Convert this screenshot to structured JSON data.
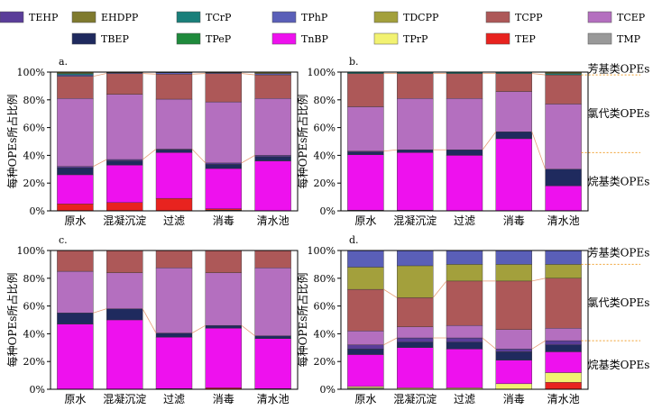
{
  "chart_data": {
    "type": "stacked-bar",
    "legend": [
      {
        "name": "EHDPP",
        "color": "#7f7a2e"
      },
      {
        "name": "TCrP",
        "color": "#1a7f7a"
      },
      {
        "name": "TPhP",
        "color": "#5a5fb8"
      },
      {
        "name": "TDCPP",
        "color": "#a3a03c"
      },
      {
        "name": "TCPP",
        "color": "#ad5858"
      },
      {
        "name": "TCEP",
        "color": "#b46fbf"
      },
      {
        "name": "TEHP",
        "color": "#5a3d99"
      },
      {
        "name": "TBEP",
        "color": "#1f2a5e"
      },
      {
        "name": "TPeP",
        "color": "#1f8a3c"
      },
      {
        "name": "TnBP",
        "color": "#ee11ee"
      },
      {
        "name": "TPrP",
        "color": "#f2f271"
      },
      {
        "name": "TEP",
        "color": "#e8231f"
      },
      {
        "name": "TMP",
        "color": "#999999"
      }
    ],
    "stack_order": [
      "TMP",
      "TEP",
      "TPrP",
      "TnBP",
      "TPeP",
      "TBEP",
      "TEHP",
      "TCEP",
      "TCPP",
      "TDCPP",
      "TPhP",
      "TCrP",
      "EHDPP"
    ],
    "categories": [
      "原水",
      "混凝沉淀",
      "过滤",
      "消毒",
      "清水池"
    ],
    "ylabel": "每种OPEs所占比例",
    "yticks": [
      "0%",
      "20%",
      "40%",
      "60%",
      "80%",
      "100%"
    ],
    "ylim": [
      0,
      100
    ],
    "group_labels": [
      "芳基类OPEs",
      "氯代类OPEs",
      "烷基类OPEs"
    ],
    "panels": [
      {
        "letter": "a.",
        "show_group_labels": false,
        "bars": [
          {
            "TEP": 5,
            "TnBP": 21,
            "TBEP": 5,
            "TEHP": 1,
            "TCEP": 49,
            "TCPP": 16,
            "TPhP": 1,
            "TCrP": 1,
            "EHDPP": 1
          },
          {
            "TEP": 6,
            "TnBP": 27,
            "TBEP": 3,
            "TEHP": 1,
            "TCEP": 47,
            "TCPP": 15,
            "TPhP": 0.5,
            "EHDPP": 0.5
          },
          {
            "TEP": 9,
            "TnBP": 33,
            "TBEP": 2,
            "TEHP": 0.5,
            "TCEP": 36,
            "TCPP": 18,
            "TPhP": 1,
            "TCrP": 0.5
          },
          {
            "TMP": 0.5,
            "TEP": 1,
            "TnBP": 29,
            "TBEP": 3,
            "TEHP": 1,
            "TCEP": 44,
            "TCPP": 20.5,
            "TPhP": 0.5,
            "EHDPP": 0.5
          },
          {
            "TnBP": 36,
            "TBEP": 3,
            "TEHP": 1,
            "TCEP": 41,
            "TCPP": 17,
            "TPhP": 1,
            "EHDPP": 1
          }
        ]
      },
      {
        "letter": "b.",
        "show_group_labels": true,
        "group_boundaries": [
          42,
          98
        ],
        "bars": [
          {
            "TEP": 0.5,
            "TnBP": 40,
            "TBEP": 2,
            "TEHP": 0.5,
            "TCEP": 32,
            "TCPP": 24,
            "TCrP": 1
          },
          {
            "TEP": 0.5,
            "TnBP": 41.5,
            "TBEP": 2,
            "TCEP": 37,
            "TCPP": 18,
            "TCrP": 1
          },
          {
            "TnBP": 40,
            "TBEP": 4,
            "TCEP": 37,
            "TCPP": 18,
            "TCrP": 1
          },
          {
            "TnBP": 52,
            "TBEP": 5,
            "TCEP": 29,
            "TCPP": 13,
            "TCrP": 1
          },
          {
            "TnBP": 18,
            "TBEP": 12,
            "TCEP": 47,
            "TCPP": 21,
            "TCrP": 1,
            "EHDPP": 1
          }
        ]
      },
      {
        "letter": "c.",
        "show_group_labels": false,
        "bars": [
          {
            "TnBP": 47,
            "TBEP": 8,
            "TCEP": 30,
            "TCPP": 15
          },
          {
            "TnBP": 50,
            "TBEP": 8,
            "TCEP": 26,
            "TCPP": 16
          },
          {
            "TEP": 0.5,
            "TnBP": 37,
            "TBEP": 3,
            "TCEP": 47,
            "TCPP": 12.5
          },
          {
            "TEP": 1,
            "TnBP": 43,
            "TBEP": 2,
            "TCEP": 38,
            "TCPP": 16
          },
          {
            "TEP": 0.5,
            "TnBP": 36,
            "TBEP": 2,
            "TCEP": 49,
            "TCPP": 12.5
          }
        ]
      },
      {
        "letter": "d.",
        "show_group_labels": true,
        "group_boundaries": [
          35,
          90
        ],
        "bars": [
          {
            "TMP": 1,
            "TPrP": 1,
            "TnBP": 23,
            "TBEP": 4,
            "TEHP": 3,
            "TCEP": 10,
            "TCPP": 30,
            "TDCPP": 16,
            "TPhP": 12
          },
          {
            "TPrP": 1,
            "TnBP": 29,
            "TBEP": 4,
            "TEHP": 3,
            "TCEP": 8,
            "TCPP": 21,
            "TDCPP": 23,
            "TPhP": 11
          },
          {
            "TPrP": 1,
            "TnBP": 28,
            "TBEP": 5,
            "TEHP": 3,
            "TCEP": 9,
            "TCPP": 32,
            "TDCPP": 12,
            "TPhP": 10
          },
          {
            "TPrP": 4,
            "TnBP": 17,
            "TBEP": 6,
            "TEHP": 2,
            "TCEP": 14,
            "TCPP": 35,
            "TDCPP": 12,
            "TPhP": 10
          },
          {
            "TEP": 5,
            "TPrP": 7,
            "TnBP": 15,
            "TBEP": 5,
            "TEHP": 3,
            "TCEP": 9,
            "TCPP": 36,
            "TDCPP": 10,
            "TPhP": 10
          }
        ]
      }
    ]
  }
}
